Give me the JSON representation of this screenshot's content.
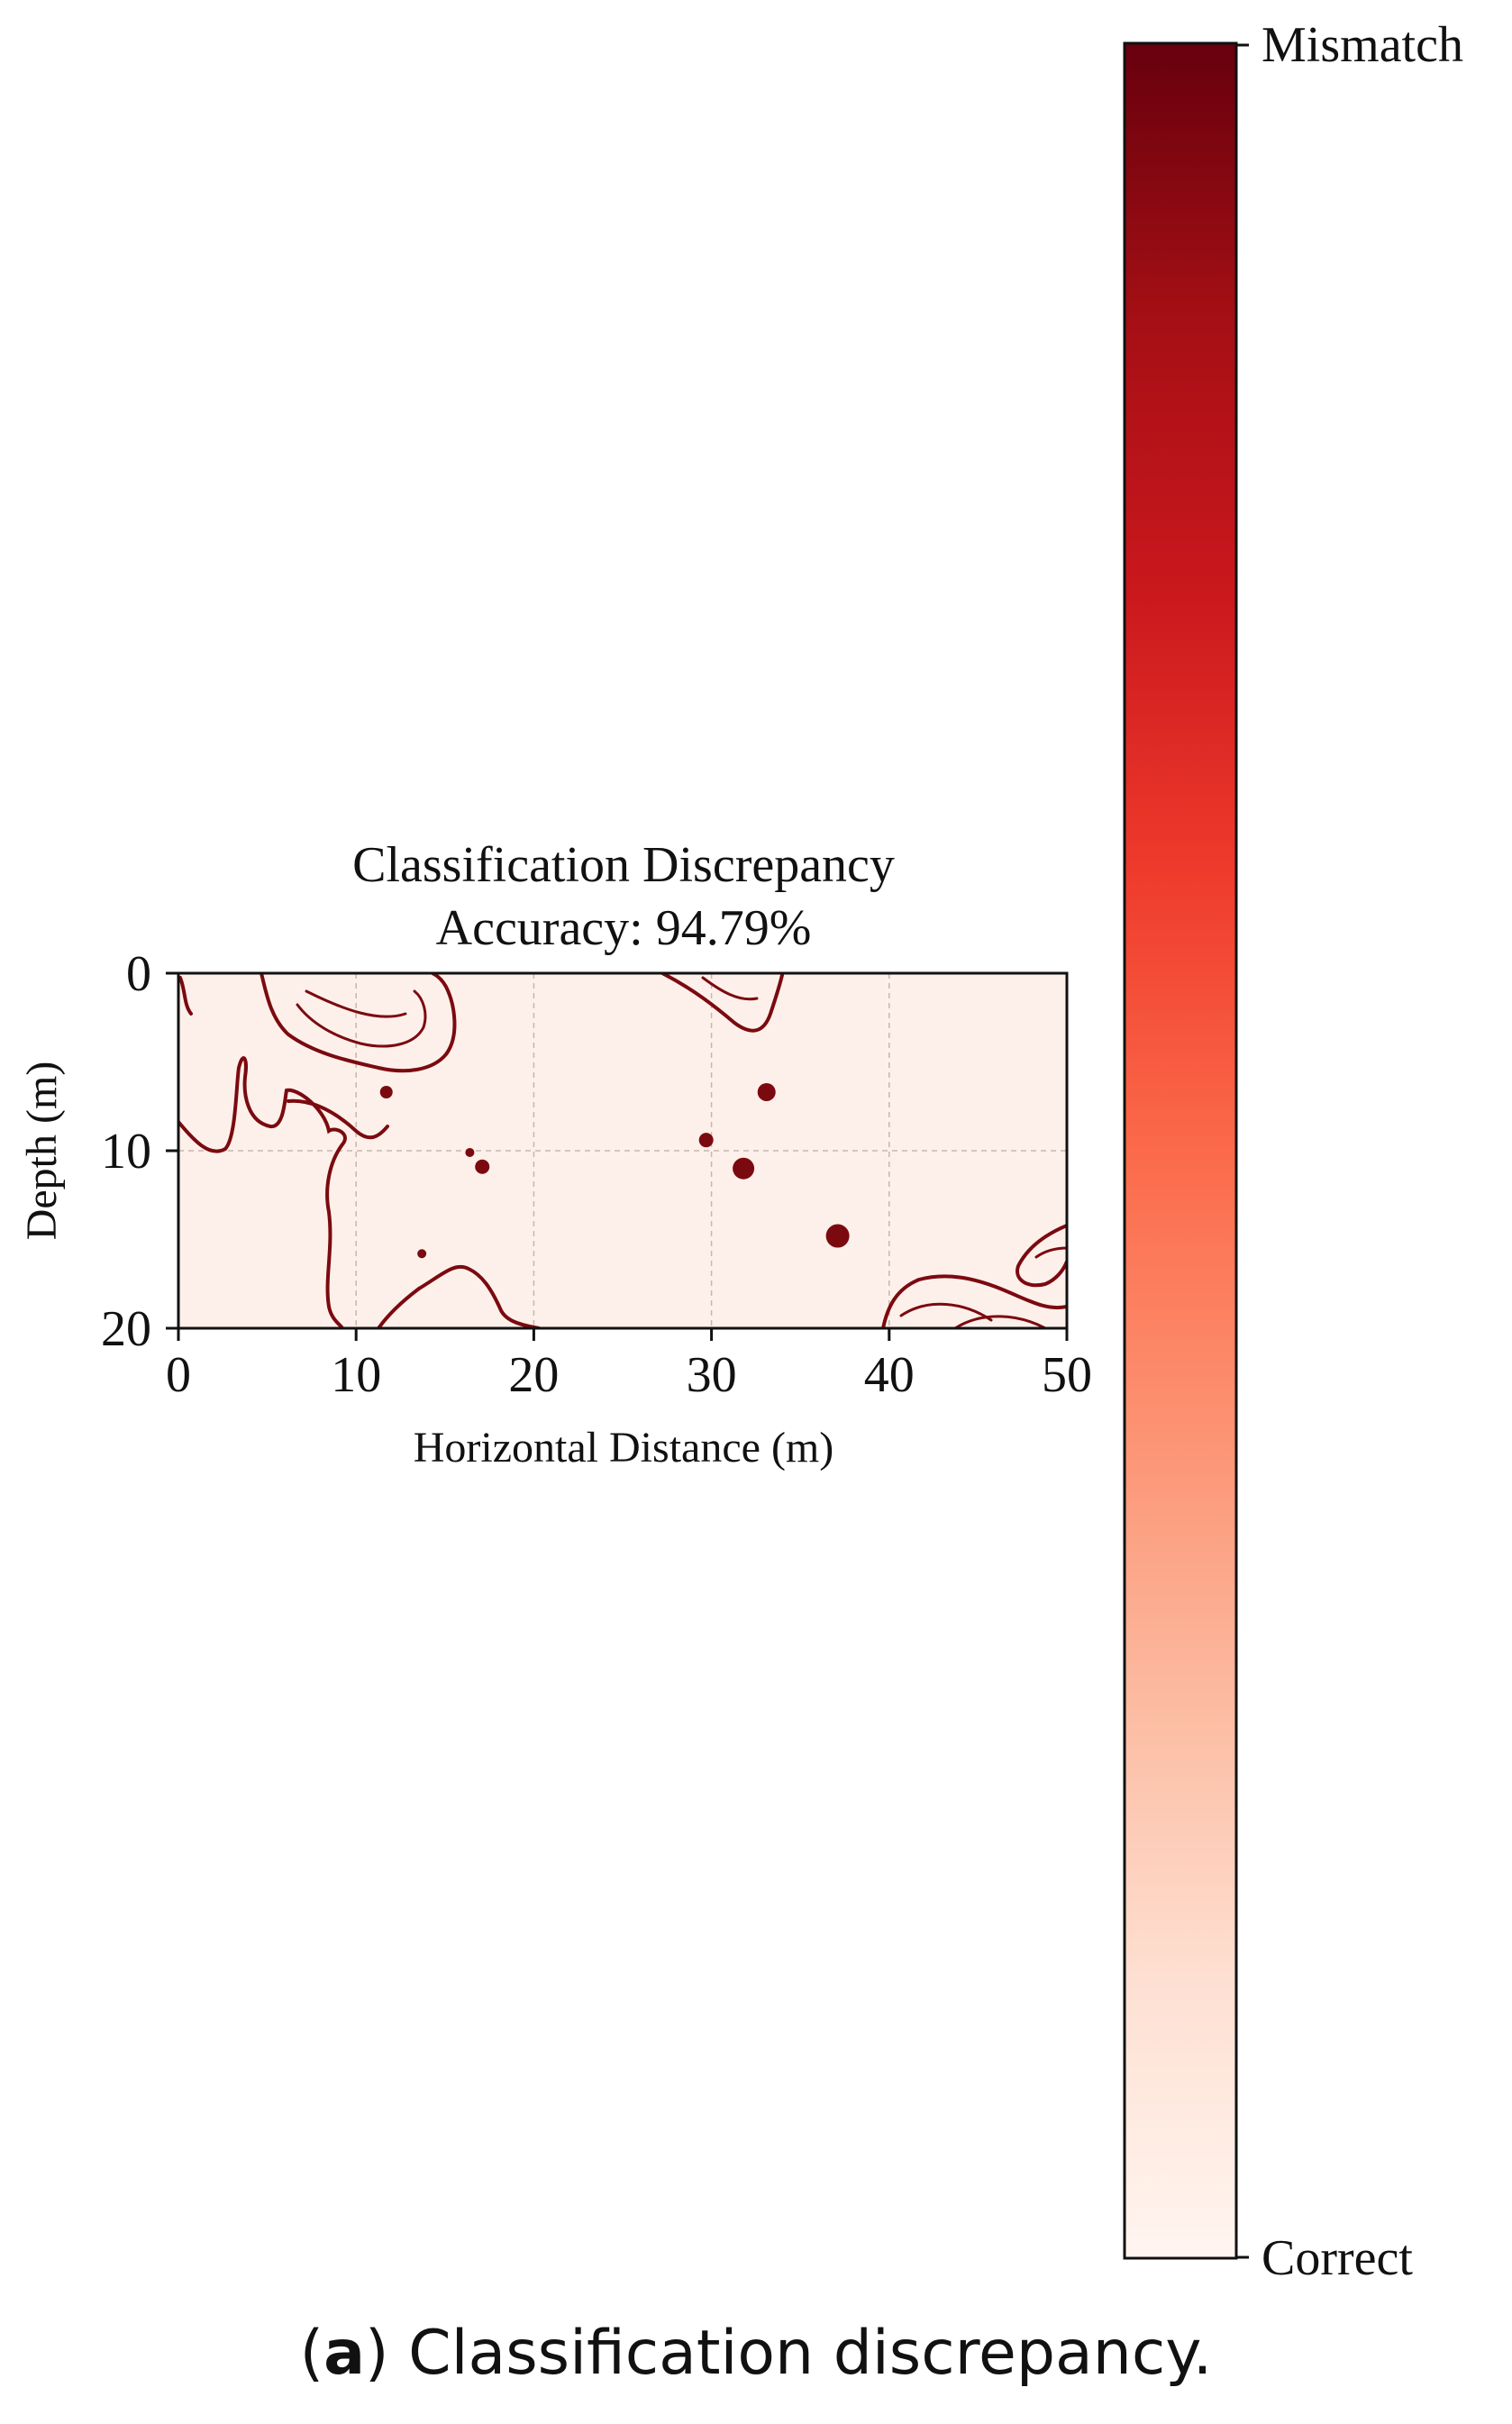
{
  "chart_data": {
    "type": "heatmap",
    "title": "Classification Discrepancy",
    "subtitle": "Accuracy: 94.79%",
    "accuracy_percent": 94.79,
    "xlabel": "Horizontal Distance (m)",
    "ylabel": "Depth (m)",
    "xlim": [
      0,
      50
    ],
    "ylim": [
      20,
      0
    ],
    "y_inverted": true,
    "xticks": [
      0,
      10,
      20,
      30,
      40,
      50
    ],
    "yticks": [
      0,
      10,
      20
    ],
    "grid": true,
    "colormap": "Reds",
    "colorbar": {
      "top_label": "Mismatch",
      "bottom_label": "Correct",
      "min_color": "#fff5f0",
      "max_color": "#67000d"
    },
    "mismatch_color": "#7b0a10",
    "background_color": "#fdf0ea",
    "mismatch_spots": [
      {
        "x": 11.7,
        "y": 6.7
      },
      {
        "x": 16.4,
        "y": 10.1
      },
      {
        "x": 17.1,
        "y": 10.9
      },
      {
        "x": 13.7,
        "y": 15.8
      },
      {
        "x": 29.7,
        "y": 9.4
      },
      {
        "x": 31.8,
        "y": 11.0
      },
      {
        "x": 33.1,
        "y": 6.7
      },
      {
        "x": 37.1,
        "y": 14.8
      }
    ]
  },
  "caption": {
    "label": "a",
    "text": ") Classification discrepancy."
  }
}
